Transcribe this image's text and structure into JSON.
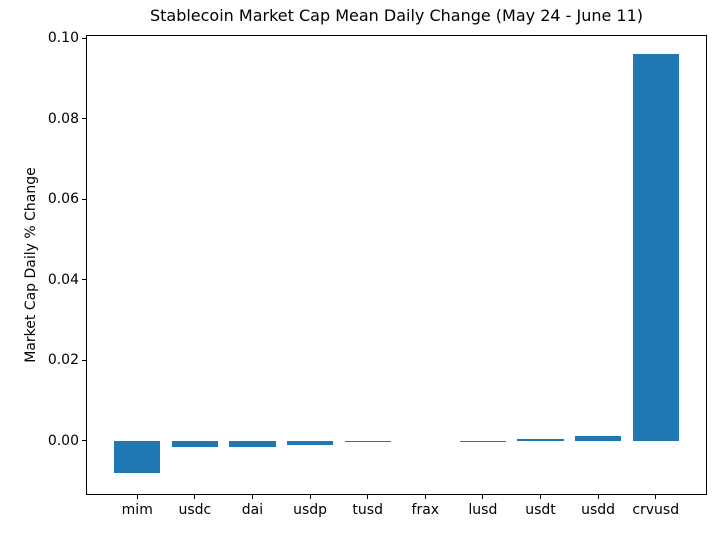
{
  "chart_data": {
    "type": "bar",
    "title": "Stablecoin Market Cap Mean Daily Change (May 24 - June 11)",
    "xlabel": "",
    "ylabel": "Market Cap Daily % Change",
    "categories": [
      "mim",
      "usdc",
      "dai",
      "usdp",
      "tusd",
      "frax",
      "lusd",
      "usdt",
      "usdd",
      "crvusd"
    ],
    "values": [
      -0.008,
      -0.0017,
      -0.0015,
      -0.0012,
      -0.0002,
      -1e-05,
      2e-05,
      0.0003,
      0.0011,
      0.0962
    ],
    "ylim": [
      -0.0135,
      0.1008
    ],
    "yticks": [
      0.0,
      0.02,
      0.04,
      0.06,
      0.08,
      0.1
    ],
    "ytick_labels": [
      "0.00",
      "0.02",
      "0.04",
      "0.06",
      "0.08",
      "0.10"
    ],
    "bar_color": "#1f77b4",
    "grid": false,
    "legend": null
  }
}
